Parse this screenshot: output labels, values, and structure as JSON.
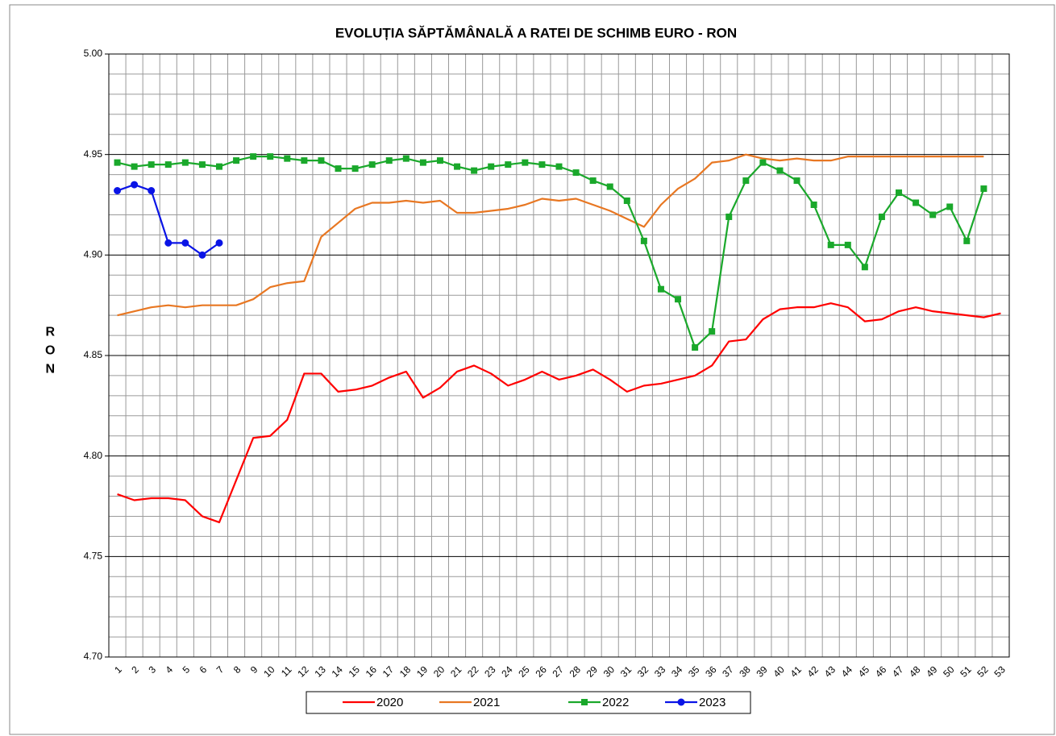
{
  "chart_data": {
    "type": "line",
    "title": "EVOLUȚIA SĂPTĂMÂNALĂ  A RATEI DE SCHIMB EURO - RON",
    "y_label": "RON",
    "categories": [
      1,
      2,
      3,
      4,
      5,
      6,
      7,
      8,
      9,
      10,
      11,
      12,
      13,
      14,
      15,
      16,
      17,
      18,
      19,
      20,
      21,
      22,
      23,
      24,
      25,
      26,
      27,
      28,
      29,
      30,
      31,
      32,
      33,
      34,
      35,
      36,
      37,
      38,
      39,
      40,
      41,
      42,
      43,
      44,
      45,
      46,
      47,
      48,
      49,
      50,
      51,
      52,
      53
    ],
    "ylim": [
      4.7,
      5.0
    ],
    "yticks": [
      {
        "value": 4.7,
        "label": "4.70"
      },
      {
        "value": 4.75,
        "label": "4.75"
      },
      {
        "value": 4.8,
        "label": "4.80"
      },
      {
        "value": 4.85,
        "label": "4.85"
      },
      {
        "value": 4.9,
        "label": "4.90"
      },
      {
        "value": 4.95,
        "label": "4.95"
      },
      {
        "value": 5.0,
        "label": "5.00"
      }
    ],
    "minor_yticks": [
      4.71,
      4.72,
      4.73,
      4.74,
      4.76,
      4.77,
      4.78,
      4.79,
      4.81,
      4.82,
      4.83,
      4.84,
      4.86,
      4.87,
      4.88,
      4.89,
      4.91,
      4.92,
      4.93,
      4.94,
      4.96,
      4.97,
      4.98,
      4.99
    ],
    "grid": true,
    "legend": "bottom",
    "series": [
      {
        "name": "2020",
        "color": "#ff0000",
        "marker": "none",
        "values": [
          4.781,
          4.778,
          4.779,
          4.779,
          4.778,
          4.77,
          4.767,
          4.788,
          4.809,
          4.81,
          4.818,
          4.841,
          4.841,
          4.832,
          4.833,
          4.835,
          4.839,
          4.842,
          4.829,
          4.834,
          4.842,
          4.845,
          4.841,
          4.835,
          4.838,
          4.842,
          4.838,
          4.84,
          4.843,
          4.838,
          4.832,
          4.835,
          4.836,
          4.838,
          4.84,
          4.845,
          4.857,
          4.858,
          4.868,
          4.873,
          4.874,
          4.874,
          4.876,
          4.874,
          4.867,
          4.868,
          4.872,
          4.874,
          4.872,
          4.871,
          4.87,
          4.869,
          4.871
        ]
      },
      {
        "name": "2021",
        "color": "#e87722",
        "marker": "none",
        "values": [
          4.87,
          4.872,
          4.874,
          4.875,
          4.874,
          4.875,
          4.875,
          4.875,
          4.878,
          4.884,
          4.886,
          4.887,
          4.909,
          4.916,
          4.923,
          4.926,
          4.926,
          4.927,
          4.926,
          4.927,
          4.921,
          4.921,
          4.922,
          4.923,
          4.925,
          4.928,
          4.927,
          4.928,
          4.925,
          4.922,
          4.918,
          4.914,
          4.925,
          4.933,
          4.938,
          4.946,
          4.947,
          4.95,
          4.948,
          4.947,
          4.948,
          4.947,
          4.947,
          4.949,
          4.949,
          4.949,
          4.949,
          4.949,
          4.949,
          4.949,
          4.949,
          4.949,
          null
        ]
      },
      {
        "name": "2022",
        "color": "#1aa82b",
        "marker": "square",
        "values": [
          4.946,
          4.944,
          4.945,
          4.945,
          4.946,
          4.945,
          4.944,
          4.947,
          4.949,
          4.949,
          4.948,
          4.947,
          4.947,
          4.943,
          4.943,
          4.945,
          4.947,
          4.948,
          4.946,
          4.947,
          4.944,
          4.942,
          4.944,
          4.945,
          4.946,
          4.945,
          4.944,
          4.941,
          4.937,
          4.934,
          4.927,
          4.907,
          4.883,
          4.878,
          4.854,
          4.862,
          4.919,
          4.937,
          4.946,
          4.942,
          4.937,
          4.925,
          4.905,
          4.905,
          4.894,
          4.919,
          4.931,
          4.926,
          4.92,
          4.924,
          4.907,
          4.933,
          null
        ]
      },
      {
        "name": "2023",
        "color": "#0a14e6",
        "marker": "circle",
        "values": [
          4.932,
          4.935,
          4.932,
          4.906,
          4.906,
          4.9,
          4.906,
          null,
          null,
          null,
          null,
          null,
          null,
          null,
          null,
          null,
          null,
          null,
          null,
          null,
          null,
          null,
          null,
          null,
          null,
          null,
          null,
          null,
          null,
          null,
          null,
          null,
          null,
          null,
          null,
          null,
          null,
          null,
          null,
          null,
          null,
          null,
          null,
          null,
          null,
          null,
          null,
          null,
          null,
          null,
          null,
          null,
          null
        ]
      }
    ]
  }
}
